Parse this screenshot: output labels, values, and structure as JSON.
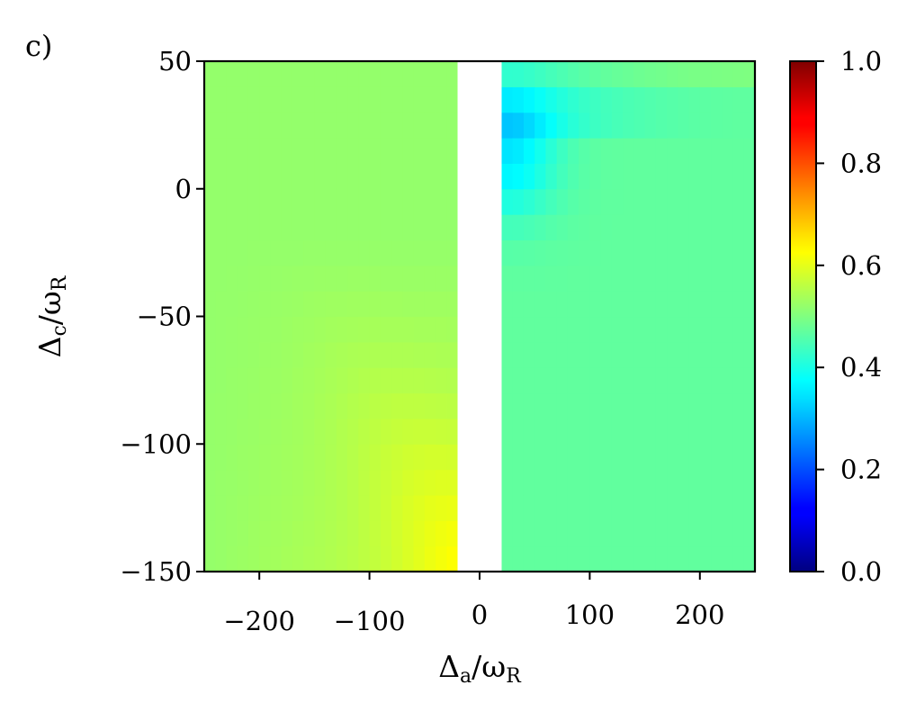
{
  "panel_label": "c)",
  "chart_data": {
    "type": "heatmap",
    "title": "",
    "xlabel": {
      "main": "Δ",
      "sub": "a",
      "slash": "/ω",
      "sub2": "R"
    },
    "ylabel": {
      "main": "Δ",
      "sub": "c",
      "slash": "/ω",
      "sub2": "R"
    },
    "xlim": [
      -250,
      250
    ],
    "ylim": [
      -150,
      50
    ],
    "xticks": [
      -200,
      -100,
      0,
      100,
      200
    ],
    "xtick_labels": [
      "−200",
      "−100",
      "0",
      "100",
      "200"
    ],
    "yticks": [
      50,
      0,
      -50,
      -100,
      -150
    ],
    "ytick_labels": [
      "50",
      "0",
      "−50",
      "−100",
      "−150"
    ],
    "colormap": "jet",
    "clim": [
      0,
      1
    ],
    "colorbar_ticks": [
      0.0,
      0.2,
      0.4,
      0.6,
      0.8,
      1.0
    ],
    "colorbar_labels": [
      "0.0",
      "0.2",
      "0.4",
      "0.6",
      "0.8",
      "1.0"
    ],
    "masked_x_range": [
      -20,
      20
    ],
    "x_range": [
      -250,
      250
    ],
    "y_range": [
      -150,
      50
    ],
    "nx": 50,
    "ny": 20,
    "approx_description_values": {
      "left_background": 0.52,
      "left_yellow_peak": 0.63,
      "right_background": 0.47,
      "right_blue_min": 0.33
    }
  }
}
